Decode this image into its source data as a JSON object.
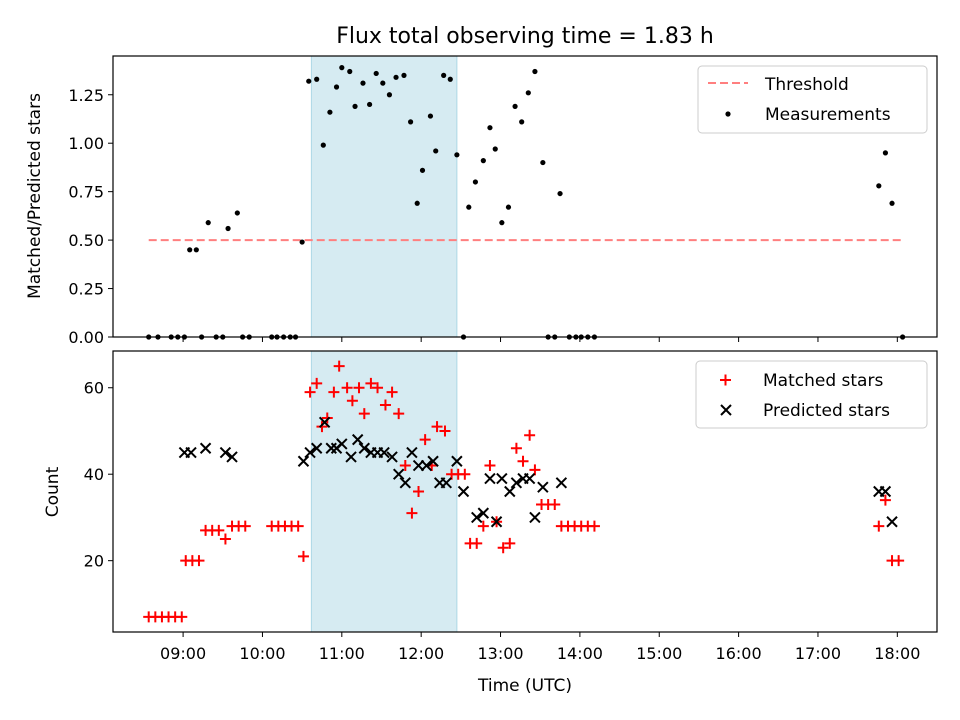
{
  "title": "Flux total observing time = 1.83 h",
  "colors": {
    "threshold": "#ff7f7f",
    "measurement": "#000000",
    "matched": "#ff0000",
    "predicted": "#000000",
    "span_fill": "#add8e6"
  },
  "chart_data": [
    {
      "type": "scatter",
      "ylabel": "Matched/Predicted stars",
      "ylim": [
        0,
        1.45
      ],
      "yticks": [
        0,
        0.25,
        0.5,
        0.75,
        1.0,
        1.25
      ],
      "ytick_labels": [
        "0.00",
        "0.25",
        "0.50",
        "0.75",
        "1.00",
        "1.25"
      ],
      "xlim": [
        "08:07",
        "18:30"
      ],
      "highlight_span": [
        "10:37",
        "12:27"
      ],
      "legend": {
        "position": "upper right",
        "threshold_label": "Threshold",
        "measurements_label": "Measurements"
      },
      "threshold": {
        "value": 0.5,
        "x_range": [
          "08:34",
          "18:04"
        ]
      },
      "series": [
        {
          "name": "Measurements",
          "points": [
            [
              "08:34",
              0
            ],
            [
              "08:41",
              0
            ],
            [
              "08:51",
              0
            ],
            [
              "08:56",
              0
            ],
            [
              "09:01",
              0
            ],
            [
              "09:05",
              0.45
            ],
            [
              "09:10",
              0.45
            ],
            [
              "09:14",
              0
            ],
            [
              "09:19",
              0.59
            ],
            [
              "09:25",
              0
            ],
            [
              "09:30",
              0
            ],
            [
              "09:34",
              0.56
            ],
            [
              "09:41",
              0.64
            ],
            [
              "09:45",
              0
            ],
            [
              "09:50",
              0
            ],
            [
              "10:07",
              0
            ],
            [
              "10:11",
              0
            ],
            [
              "10:16",
              0
            ],
            [
              "10:21",
              0
            ],
            [
              "10:25",
              0
            ],
            [
              "10:30",
              0.49
            ],
            [
              "10:35",
              1.32
            ],
            [
              "10:41",
              1.33
            ],
            [
              "10:46",
              0.99
            ],
            [
              "10:51",
              1.16
            ],
            [
              "10:56",
              1.29
            ],
            [
              "11:00",
              1.39
            ],
            [
              "11:06",
              1.37
            ],
            [
              "11:10",
              1.19
            ],
            [
              "11:16",
              1.31
            ],
            [
              "11:21",
              1.2
            ],
            [
              "11:26",
              1.36
            ],
            [
              "11:31",
              1.31
            ],
            [
              "11:36",
              1.25
            ],
            [
              "11:41",
              1.34
            ],
            [
              "11:47",
              1.35
            ],
            [
              "11:52",
              1.11
            ],
            [
              "11:57",
              0.69
            ],
            [
              "12:01",
              0.86
            ],
            [
              "12:07",
              1.14
            ],
            [
              "12:11",
              0.96
            ],
            [
              "12:17",
              1.35
            ],
            [
              "12:22",
              1.33
            ],
            [
              "12:27",
              0.94
            ],
            [
              "12:32",
              0
            ],
            [
              "12:36",
              0.67
            ],
            [
              "12:41",
              0.8
            ],
            [
              "12:47",
              0.91
            ],
            [
              "12:52",
              1.08
            ],
            [
              "12:56",
              0.97
            ],
            [
              "13:01",
              0.59
            ],
            [
              "13:06",
              0.67
            ],
            [
              "13:11",
              1.19
            ],
            [
              "13:16",
              1.11
            ],
            [
              "13:21",
              1.26
            ],
            [
              "13:26",
              1.37
            ],
            [
              "13:32",
              0.9
            ],
            [
              "13:36",
              0
            ],
            [
              "13:41",
              0
            ],
            [
              "13:45",
              0.74
            ],
            [
              "13:52",
              0
            ],
            [
              "13:57",
              0
            ],
            [
              "14:01",
              0
            ],
            [
              "14:06",
              0
            ],
            [
              "14:11",
              0
            ],
            [
              "17:46",
              0.78
            ],
            [
              "17:51",
              0.95
            ],
            [
              "17:56",
              0.69
            ],
            [
              "18:04",
              0
            ]
          ]
        }
      ]
    },
    {
      "type": "scatter",
      "ylabel": "Count",
      "xlabel": "Time (UTC)",
      "ylim": [
        3.5,
        68.5
      ],
      "yticks": [
        20,
        40,
        60
      ],
      "ytick_labels": [
        "20",
        "40",
        "60"
      ],
      "xlim": [
        "08:07",
        "18:30"
      ],
      "xticks": [
        "09:00",
        "10:00",
        "11:00",
        "12:00",
        "13:00",
        "14:00",
        "15:00",
        "16:00",
        "17:00",
        "18:00"
      ],
      "highlight_span": [
        "10:37",
        "12:27"
      ],
      "legend": {
        "position": "upper right",
        "matched_label": "Matched stars",
        "predicted_label": "Predicted stars"
      },
      "series": [
        {
          "name": "Matched stars",
          "points": [
            [
              "08:34",
              7
            ],
            [
              "08:39",
              7
            ],
            [
              "08:44",
              7
            ],
            [
              "08:49",
              7
            ],
            [
              "08:54",
              7
            ],
            [
              "08:59",
              7
            ],
            [
              "09:02",
              20
            ],
            [
              "09:07",
              20
            ],
            [
              "09:12",
              20
            ],
            [
              "09:17",
              27
            ],
            [
              "09:22",
              27
            ],
            [
              "09:27",
              27
            ],
            [
              "09:32",
              25
            ],
            [
              "09:37",
              28
            ],
            [
              "09:42",
              28
            ],
            [
              "09:47",
              28
            ],
            [
              "10:07",
              28
            ],
            [
              "10:12",
              28
            ],
            [
              "10:17",
              28
            ],
            [
              "10:22",
              28
            ],
            [
              "10:27",
              28
            ],
            [
              "10:31",
              21
            ],
            [
              "10:36",
              59
            ],
            [
              "10:41",
              61
            ],
            [
              "10:45",
              51
            ],
            [
              "10:49",
              53
            ],
            [
              "10:54",
              59
            ],
            [
              "10:58",
              65
            ],
            [
              "11:04",
              60
            ],
            [
              "11:08",
              57
            ],
            [
              "11:13",
              60
            ],
            [
              "11:17",
              54
            ],
            [
              "11:22",
              61
            ],
            [
              "11:27",
              60
            ],
            [
              "11:33",
              56
            ],
            [
              "11:38",
              59
            ],
            [
              "11:43",
              54
            ],
            [
              "11:48",
              42
            ],
            [
              "11:53",
              31
            ],
            [
              "11:58",
              36
            ],
            [
              "12:03",
              48
            ],
            [
              "12:08",
              42
            ],
            [
              "12:12",
              51
            ],
            [
              "12:18",
              50
            ],
            [
              "12:23",
              40
            ],
            [
              "12:28",
              40
            ],
            [
              "12:33",
              40
            ],
            [
              "12:37",
              24
            ],
            [
              "12:42",
              24
            ],
            [
              "12:47",
              28
            ],
            [
              "12:52",
              42
            ],
            [
              "12:57",
              29
            ],
            [
              "13:02",
              23
            ],
            [
              "13:07",
              24
            ],
            [
              "13:12",
              46
            ],
            [
              "13:17",
              43
            ],
            [
              "13:22",
              49
            ],
            [
              "13:26",
              41
            ],
            [
              "13:31",
              33
            ],
            [
              "13:36",
              33
            ],
            [
              "13:41",
              33
            ],
            [
              "13:46",
              28
            ],
            [
              "13:51",
              28
            ],
            [
              "13:56",
              28
            ],
            [
              "14:01",
              28
            ],
            [
              "14:06",
              28
            ],
            [
              "14:11",
              28
            ],
            [
              "17:46",
              28
            ],
            [
              "17:51",
              34
            ],
            [
              "17:56",
              20
            ],
            [
              "18:01",
              20
            ]
          ]
        },
        {
          "name": "Predicted stars",
          "points": [
            [
              "09:01",
              45
            ],
            [
              "09:06",
              45
            ],
            [
              "09:17",
              46
            ],
            [
              "09:32",
              45
            ],
            [
              "09:37",
              44
            ],
            [
              "10:31",
              43
            ],
            [
              "10:36",
              45
            ],
            [
              "10:41",
              46
            ],
            [
              "10:47",
              52
            ],
            [
              "10:52",
              46
            ],
            [
              "10:56",
              46
            ],
            [
              "11:00",
              47
            ],
            [
              "11:07",
              44
            ],
            [
              "11:12",
              48
            ],
            [
              "11:17",
              46
            ],
            [
              "11:22",
              45
            ],
            [
              "11:27",
              45
            ],
            [
              "11:32",
              45
            ],
            [
              "11:38",
              44
            ],
            [
              "11:43",
              40
            ],
            [
              "11:48",
              38
            ],
            [
              "11:53",
              45
            ],
            [
              "11:58",
              42
            ],
            [
              "12:04",
              42
            ],
            [
              "12:09",
              43
            ],
            [
              "12:14",
              38
            ],
            [
              "12:19",
              38
            ],
            [
              "12:27",
              43
            ],
            [
              "12:32",
              36
            ],
            [
              "12:42",
              30
            ],
            [
              "12:47",
              31
            ],
            [
              "12:52",
              39
            ],
            [
              "12:57",
              29
            ],
            [
              "13:01",
              39
            ],
            [
              "13:07",
              36
            ],
            [
              "13:12",
              38
            ],
            [
              "13:17",
              39
            ],
            [
              "13:22",
              39
            ],
            [
              "13:26",
              30
            ],
            [
              "13:32",
              37
            ],
            [
              "13:46",
              38
            ],
            [
              "17:46",
              36
            ],
            [
              "17:51",
              36
            ],
            [
              "17:56",
              29
            ]
          ]
        }
      ]
    }
  ]
}
